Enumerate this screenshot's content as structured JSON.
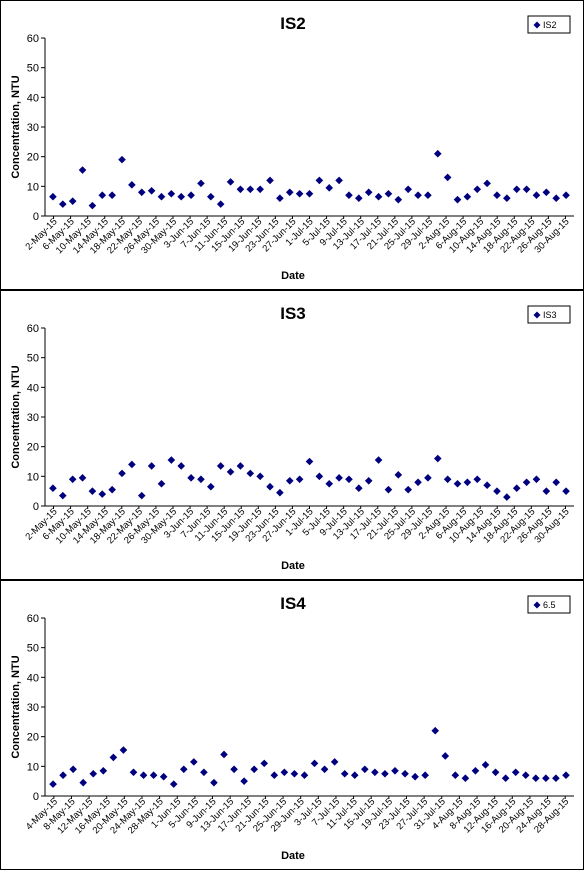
{
  "chart_data": [
    {
      "type": "scatter",
      "title": "IS2",
      "xlabel": "Date",
      "ylabel": "Concentration, NTU",
      "ylim": [
        0,
        60
      ],
      "yticks": [
        "0",
        "10",
        "20",
        "30",
        "40",
        "50",
        "60"
      ],
      "marker_color": "#00007F",
      "legend": {
        "position": "top-right",
        "entries": [
          "IS2"
        ]
      },
      "xtick_labels": [
        "2-May-15",
        "6-May-15",
        "10-May-15",
        "14-May-15",
        "18-May-15",
        "22-May-15",
        "26-May-15",
        "30-May-15",
        "3-Jun-15",
        "7-Jun-15",
        "11-Jun-15",
        "15-Jun-15",
        "19-Jun-15",
        "23-Jun-15",
        "27-Jun-15",
        "1-Jul-15",
        "5-Jul-15",
        "9-Jul-15",
        "13-Jul-15",
        "17-Jul-15",
        "21-Jul-15",
        "25-Jul-15",
        "29-Jul-15",
        "2-Aug-15",
        "6-Aug-15",
        "10-Aug-15",
        "14-Aug-15",
        "18-Aug-15",
        "22-Aug-15",
        "26-Aug-15",
        "30-Aug-15"
      ],
      "series": [
        {
          "name": "IS2",
          "values": [
            6.5,
            4,
            5,
            15.5,
            3.5,
            7,
            7,
            19,
            10.5,
            8,
            8.5,
            6.5,
            7.5,
            6.5,
            7,
            11,
            6.5,
            4,
            11.5,
            9,
            9,
            9,
            12,
            6,
            8,
            7.5,
            7.5,
            12,
            9.5,
            12,
            7,
            6,
            8,
            6.5,
            7.5,
            5.5,
            9,
            7,
            7,
            21,
            13,
            5.5,
            6.5,
            9,
            11,
            7,
            6,
            9,
            9,
            7,
            8,
            6,
            7
          ]
        }
      ]
    },
    {
      "type": "scatter",
      "title": "IS3",
      "xlabel": "Date",
      "ylabel": "Concentration, NTU",
      "ylim": [
        0,
        60
      ],
      "yticks": [
        "0",
        "10",
        "20",
        "30",
        "40",
        "50",
        "60"
      ],
      "marker_color": "#00007F",
      "legend": {
        "position": "top-right",
        "entries": [
          "IS3"
        ]
      },
      "xtick_labels": [
        "2-May-15",
        "6-May-15",
        "10-May-15",
        "14-May-15",
        "18-May-15",
        "22-May-15",
        "26-May-15",
        "30-May-15",
        "3-Jun-15",
        "7-Jun-15",
        "11-Jun-15",
        "15-Jun-15",
        "19-Jun-15",
        "23-Jun-15",
        "27-Jun-15",
        "1-Jul-15",
        "5-Jul-15",
        "9-Jul-15",
        "13-Jul-15",
        "17-Jul-15",
        "21-Jul-15",
        "25-Jul-15",
        "29-Jul-15",
        "2-Aug-15",
        "6-Aug-15",
        "10-Aug-15",
        "14-Aug-15",
        "18-Aug-15",
        "22-Aug-15",
        "26-Aug-15",
        "30-Aug-15"
      ],
      "series": [
        {
          "name": "IS3",
          "values": [
            6,
            3.5,
            9,
            9.5,
            5,
            4,
            5.5,
            11,
            14,
            3.5,
            13.5,
            7.5,
            15.5,
            13.5,
            9.5,
            9,
            6.5,
            13.5,
            11.5,
            13.5,
            11,
            10,
            6.5,
            4.5,
            8.5,
            9,
            15,
            10,
            7.5,
            9.5,
            9,
            6,
            8.5,
            15.5,
            5.5,
            10.5,
            5.5,
            8,
            9.5,
            16,
            9,
            7.5,
            8,
            9,
            7,
            5,
            3,
            6,
            8,
            9,
            5,
            8,
            5
          ]
        }
      ]
    },
    {
      "type": "scatter",
      "title": "IS4",
      "xlabel": "Date",
      "ylabel": "Concentration, NTU",
      "ylim": [
        0,
        60
      ],
      "yticks": [
        "0",
        "10",
        "20",
        "30",
        "40",
        "50",
        "60"
      ],
      "marker_color": "#00007F",
      "legend": {
        "position": "top-right",
        "entries": [
          "6.5"
        ]
      },
      "xtick_labels": [
        "4-May-15",
        "8-May-15",
        "12-May-15",
        "16-May-15",
        "20-May-15",
        "24-May-15",
        "28-May-15",
        "1-Jun-15",
        "5-Jun-15",
        "9-Jun-15",
        "13-Jun-15",
        "17-Jun-15",
        "21-Jun-15",
        "25-Jun-15",
        "29-Jun-15",
        "3-Jul-15",
        "7-Jul-15",
        "11-Jul-15",
        "15-Jul-15",
        "19-Jul-15",
        "23-Jul-15",
        "27-Jul-15",
        "31-Jul-15",
        "4-Aug-15",
        "8-Aug-15",
        "12-Aug-15",
        "16-Aug-15",
        "20-Aug-15",
        "24-Aug-15",
        "28-Aug-15"
      ],
      "series": [
        {
          "name": "6.5",
          "values": [
            4,
            7,
            9,
            4.5,
            7.5,
            8.5,
            13,
            15.5,
            8,
            7,
            7,
            6.5,
            4,
            9,
            11.5,
            8,
            4.5,
            14,
            9,
            5,
            9,
            11,
            7,
            8,
            7.5,
            7,
            11,
            9,
            11.5,
            7.5,
            7,
            9,
            8,
            7.5,
            8.5,
            7.5,
            6.5,
            7,
            22,
            13.5,
            7,
            6,
            8.5,
            10.5,
            8,
            6,
            8,
            7,
            6,
            6,
            6,
            7
          ]
        }
      ]
    }
  ]
}
